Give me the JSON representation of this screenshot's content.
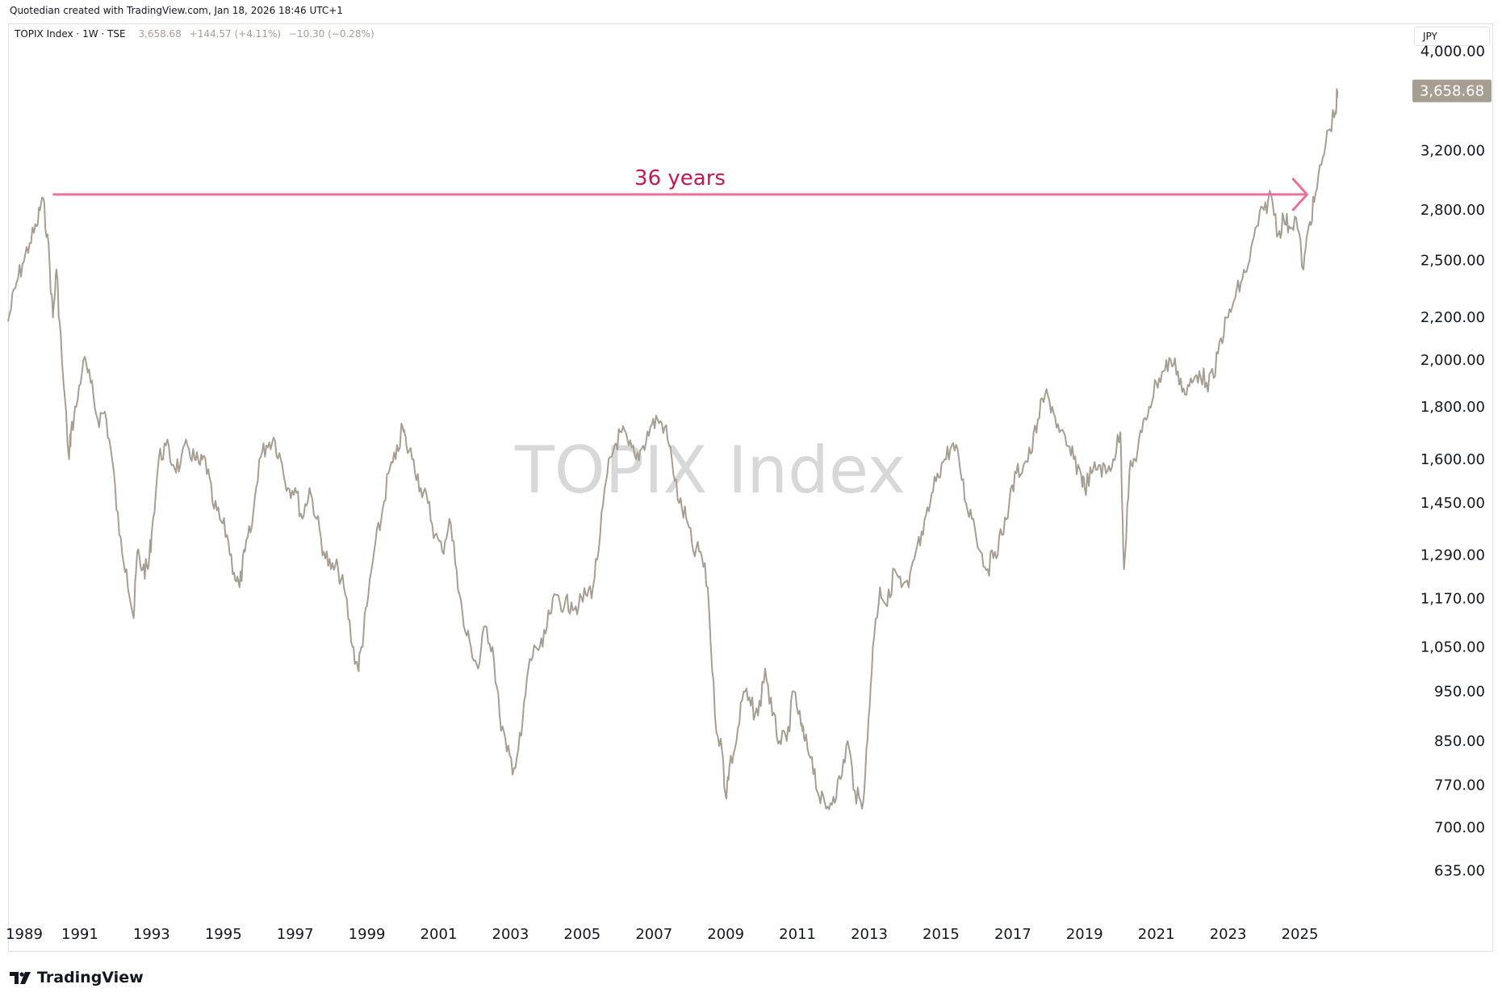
{
  "credit": "Quotedian created with TradingView.com, Jan 18, 2026 18:46 UTC+1",
  "legend": {
    "symbol": "TOPIX Index · 1W · TSE",
    "last": "3,658.68",
    "change": "+144.57 (+4.11%)",
    "change2": "−10.30 (−0.28%)"
  },
  "currency": "JPY",
  "watermark": "TOPIX Index",
  "brand": "TradingView",
  "colors": {
    "line": "#a79e92",
    "annotation": "#e8709a",
    "annotation_text": "#c2185b",
    "last_bg": "#a79e92"
  },
  "icons": {
    "brand_logo": "tradingview-logo-icon"
  },
  "chart_data": {
    "type": "line",
    "title": "",
    "xlabel": "",
    "ylabel": "",
    "y_scale": "log",
    "ylim": [
      600,
      4250
    ],
    "xlim": [
      1989.0,
      2027.8
    ],
    "grid": false,
    "y_ticks": [
      635,
      700,
      770,
      850,
      950,
      1050,
      1170,
      1290,
      1450,
      1600,
      1800,
      2000,
      2200,
      2500,
      2800,
      3200,
      4000
    ],
    "y_tick_labels": [
      "635.00",
      "700.00",
      "770.00",
      "850.00",
      "950.00",
      "1,050.00",
      "1,170.00",
      "1,290.00",
      "1,450.00",
      "1,600.00",
      "1,800.00",
      "2,000.00",
      "2,200.00",
      "2,500.00",
      "2,800.00",
      "3,200.00",
      "4,000.00"
    ],
    "x_ticks": [
      1989,
      1991,
      1993,
      1995,
      1997,
      1999,
      2001,
      2003,
      2005,
      2007,
      2009,
      2011,
      2013,
      2015,
      2017,
      2019,
      2021,
      2023,
      2025
    ],
    "x_tick_labels": [
      "1989",
      "1991",
      "1993",
      "1995",
      "1997",
      "1999",
      "2001",
      "2003",
      "2005",
      "2007",
      "2009",
      "2011",
      "2013",
      "2015",
      "2017",
      "2019",
      "2021",
      "2023",
      "2025"
    ],
    "series": [
      {
        "x": [
          1989.0,
          1989.2,
          1989.4,
          1989.6,
          1989.8,
          1989.95,
          1990.1,
          1990.25,
          1990.35,
          1990.5,
          1990.7,
          1990.75,
          1990.9,
          1991.1,
          1991.3,
          1991.5,
          1991.7,
          1991.9,
          1992.1,
          1992.3,
          1992.5,
          1992.6,
          1992.75,
          1992.9,
          1993.0,
          1993.2,
          1993.4,
          1993.6,
          1993.8,
          1994.0,
          1994.2,
          1994.35,
          1994.5,
          1994.7,
          1994.9,
          1995.1,
          1995.3,
          1995.45,
          1995.6,
          1995.8,
          1996.0,
          1996.2,
          1996.4,
          1996.6,
          1996.8,
          1997.0,
          1997.2,
          1997.4,
          1997.6,
          1997.8,
          1998.0,
          1998.2,
          1998.4,
          1998.6,
          1998.75,
          1998.85,
          1999.0,
          1999.2,
          1999.4,
          1999.6,
          1999.8,
          2000.0,
          2000.1,
          2000.3,
          2000.5,
          2000.7,
          2000.9,
          2001.1,
          2001.3,
          2001.5,
          2001.7,
          2001.9,
          2002.1,
          2002.3,
          2002.5,
          2002.7,
          2002.9,
          2003.1,
          2003.3,
          2003.5,
          2003.7,
          2003.9,
          2004.1,
          2004.3,
          2004.5,
          2004.7,
          2004.9,
          2005.1,
          2005.3,
          2005.5,
          2005.7,
          2005.9,
          2006.1,
          2006.3,
          2006.5,
          2006.7,
          2006.9,
          2007.1,
          2007.3,
          2007.5,
          2007.7,
          2007.9,
          2008.1,
          2008.3,
          2008.5,
          2008.7,
          2008.9,
          2009.0,
          2009.1,
          2009.3,
          2009.5,
          2009.7,
          2009.9,
          2010.1,
          2010.3,
          2010.5,
          2010.7,
          2010.9,
          2011.1,
          2011.2,
          2011.4,
          2011.6,
          2011.8,
          2012.0,
          2012.2,
          2012.4,
          2012.6,
          2012.8,
          2012.95,
          2013.1,
          2013.3,
          2013.5,
          2013.7,
          2013.9,
          2014.1,
          2014.3,
          2014.5,
          2014.7,
          2014.9,
          2015.1,
          2015.3,
          2015.5,
          2015.7,
          2015.9,
          2016.1,
          2016.3,
          2016.5,
          2016.7,
          2016.9,
          2017.1,
          2017.3,
          2017.5,
          2017.7,
          2017.9,
          2018.1,
          2018.3,
          2018.5,
          2018.7,
          2018.9,
          2019.0,
          2019.2,
          2019.4,
          2019.6,
          2019.8,
          2020.0,
          2020.1,
          2020.25,
          2020.4,
          2020.6,
          2020.8,
          2021.0,
          2021.2,
          2021.4,
          2021.6,
          2021.8,
          2022.0,
          2022.2,
          2022.4,
          2022.6,
          2022.8,
          2023.0,
          2023.2,
          2023.4,
          2023.6,
          2023.8,
          2024.0,
          2024.2,
          2024.4,
          2024.55,
          2024.7,
          2024.9,
          2025.1,
          2025.25,
          2025.4,
          2025.6,
          2025.8,
          2026.0,
          2026.05
        ],
        "y": [
          2180,
          2350,
          2480,
          2600,
          2700,
          2880,
          2650,
          2200,
          2450,
          2000,
          1600,
          1700,
          1800,
          2000,
          1900,
          1750,
          1780,
          1600,
          1350,
          1250,
          1120,
          1300,
          1250,
          1250,
          1350,
          1600,
          1650,
          1580,
          1580,
          1650,
          1600,
          1580,
          1600,
          1450,
          1400,
          1350,
          1240,
          1200,
          1300,
          1380,
          1600,
          1650,
          1680,
          1600,
          1500,
          1500,
          1400,
          1500,
          1400,
          1300,
          1250,
          1250,
          1180,
          1050,
          1000,
          1050,
          1150,
          1300,
          1400,
          1550,
          1600,
          1720,
          1650,
          1600,
          1500,
          1450,
          1350,
          1300,
          1400,
          1250,
          1100,
          1050,
          1000,
          1100,
          1050,
          900,
          830,
          800,
          860,
          1000,
          1050,
          1050,
          1130,
          1180,
          1150,
          1160,
          1150,
          1180,
          1200,
          1350,
          1550,
          1650,
          1700,
          1650,
          1600,
          1650,
          1720,
          1750,
          1720,
          1600,
          1450,
          1400,
          1300,
          1300,
          1200,
          900,
          830,
          750,
          800,
          850,
          950,
          920,
          900,
          1000,
          900,
          850,
          850,
          950,
          880,
          850,
          820,
          750,
          730,
          750,
          780,
          850,
          760,
          730,
          850,
          1050,
          1200,
          1150,
          1250,
          1200,
          1200,
          1300,
          1350,
          1450,
          1550,
          1600,
          1650,
          1600,
          1450,
          1400,
          1300,
          1250,
          1300,
          1350,
          1450,
          1550,
          1580,
          1620,
          1750,
          1850,
          1800,
          1700,
          1650,
          1600,
          1550,
          1500,
          1550,
          1580,
          1550,
          1600,
          1700,
          1250,
          1550,
          1600,
          1700,
          1800,
          1900,
          1950,
          2000,
          1950,
          1850,
          1900,
          1950,
          1900,
          1920,
          2100,
          2200,
          2300,
          2400,
          2500,
          2700,
          2800,
          2900,
          2650,
          2750,
          2700,
          2750,
          2450,
          2700,
          2850,
          3100,
          3350,
          3500,
          3658.68
        ]
      }
    ],
    "last_value_label": "3,658.68",
    "annotation": {
      "text": "36 years",
      "x_start": 1990.25,
      "x_end": 2025.2,
      "y": 2900
    }
  }
}
